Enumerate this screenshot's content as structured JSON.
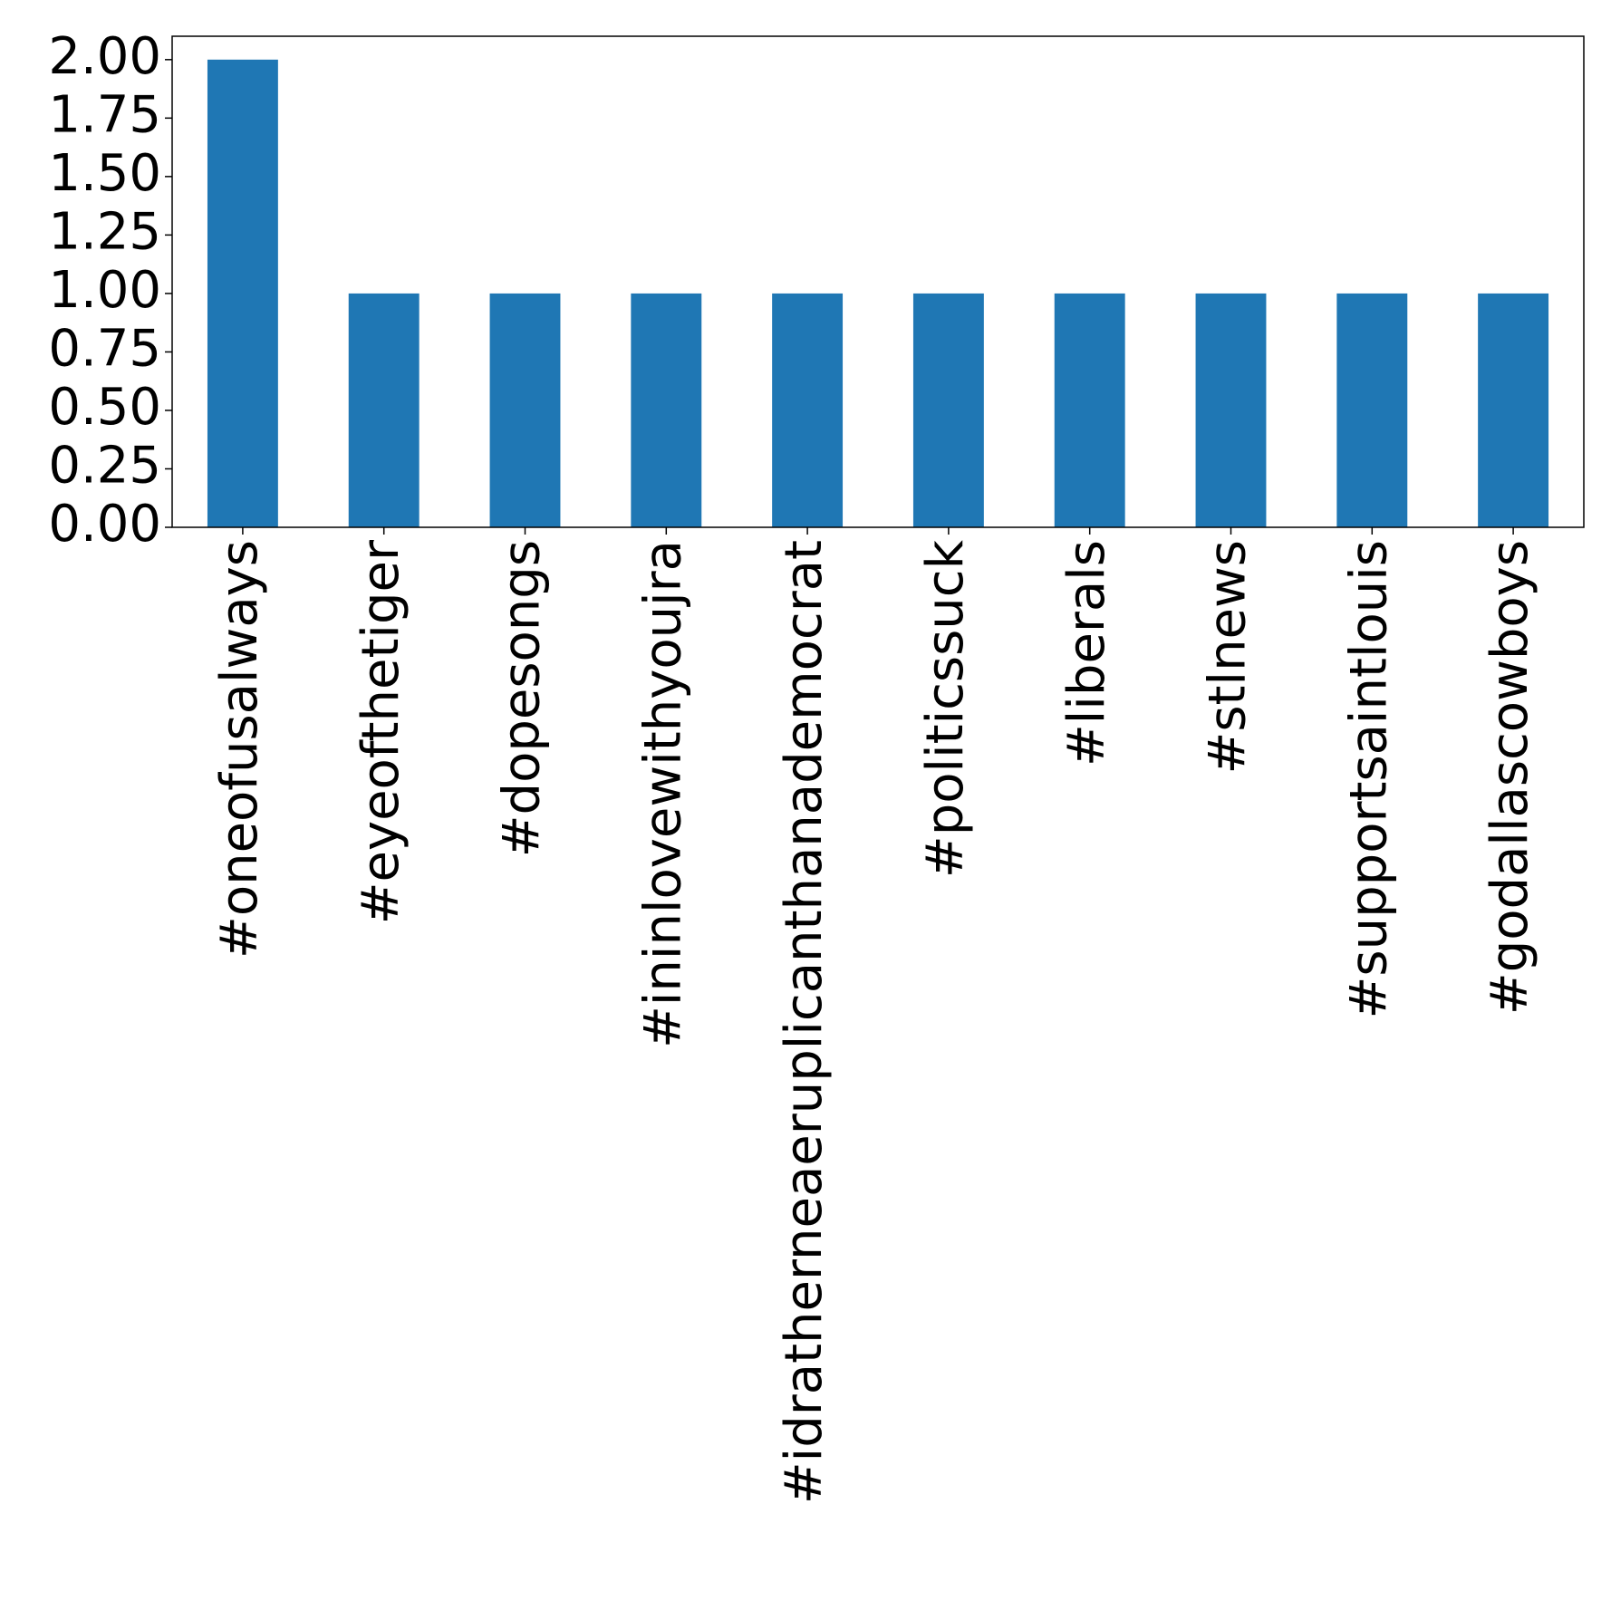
{
  "chart_data": {
    "type": "bar",
    "categories": [
      "#oneofusalways",
      "#eyeofthetiger",
      "#dopesongs",
      "#ininlovewithyoujra",
      "#idratherneaeruplicanthanademocrat",
      "#politicssuck",
      "#liberals",
      "#stlnews",
      "#supportsaintlouis",
      "#godallascowboys"
    ],
    "values": [
      2,
      1,
      1,
      1,
      1,
      1,
      1,
      1,
      1,
      1
    ],
    "yticks": [
      "0.00",
      "0.25",
      "0.50",
      "0.75",
      "1.00",
      "1.25",
      "1.50",
      "1.75",
      "2.00"
    ],
    "ylim": [
      0,
      2.1
    ],
    "title": "",
    "xlabel": "",
    "ylabel": "",
    "grid": false,
    "bar_color": "#1f77b4"
  }
}
